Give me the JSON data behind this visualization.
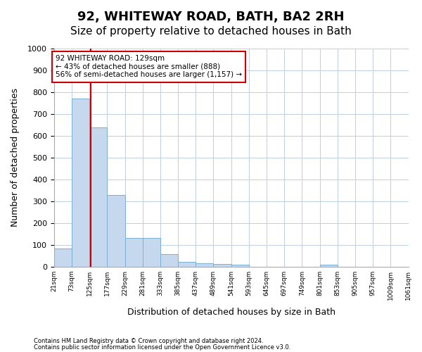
{
  "title": "92, WHITEWAY ROAD, BATH, BA2 2RH",
  "subtitle": "Size of property relative to detached houses in Bath",
  "xlabel": "Distribution of detached houses by size in Bath",
  "ylabel": "Number of detached properties",
  "footnote1": "Contains HM Land Registry data © Crown copyright and database right 2024.",
  "footnote2": "Contains public sector information licensed under the Open Government Licence v3.0.",
  "bar_color": "#c5d8ed",
  "bar_edge_color": "#7aafd4",
  "vline_color": "#cc0000",
  "vline_x": 129,
  "annotation_text": "92 WHITEWAY ROAD: 129sqm\n← 43% of detached houses are smaller (888)\n56% of semi-detached houses are larger (1,157) →",
  "annotation_box_color": "#ffffff",
  "annotation_box_edge": "#cc0000",
  "bins": [
    21,
    73,
    125,
    177,
    229,
    281,
    333,
    385,
    437,
    489,
    541,
    593,
    645,
    697,
    749,
    801,
    853,
    905,
    957,
    1009,
    1061
  ],
  "bin_labels": [
    "21sqm",
    "73sqm",
    "125sqm",
    "177sqm",
    "229sqm",
    "281sqm",
    "333sqm",
    "385sqm",
    "437sqm",
    "489sqm",
    "541sqm",
    "593sqm",
    "645sqm",
    "697sqm",
    "749sqm",
    "801sqm",
    "853sqm",
    "905sqm",
    "957sqm",
    "1009sqm",
    "1061sqm"
  ],
  "counts": [
    82,
    770,
    640,
    330,
    133,
    133,
    57,
    22,
    17,
    13,
    8,
    0,
    0,
    0,
    0,
    9,
    0,
    0,
    0,
    0
  ],
  "ylim": [
    0,
    1000
  ],
  "yticks": [
    0,
    100,
    200,
    300,
    400,
    500,
    600,
    700,
    800,
    900,
    1000
  ],
  "background_color": "#ffffff",
  "grid_color": "#c0cfe0",
  "title_fontsize": 13,
  "subtitle_fontsize": 11
}
